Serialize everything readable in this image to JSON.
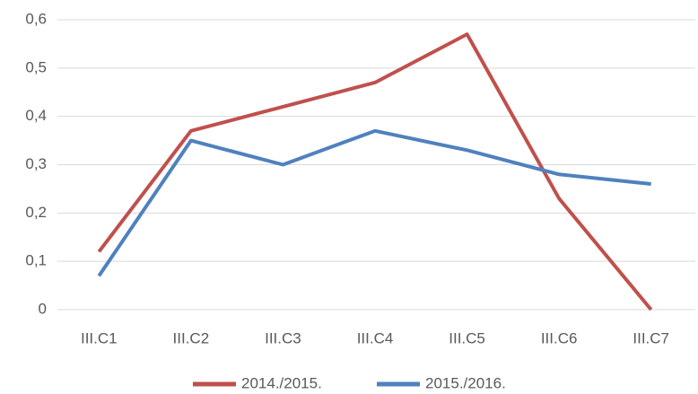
{
  "chart_data": {
    "type": "line",
    "categories": [
      "III.C1",
      "III.C2",
      "III.C3",
      "III.C4",
      "III.C5",
      "III.C6",
      "III.C7"
    ],
    "series": [
      {
        "name": "2014./2015.",
        "color": "#c0504d",
        "values": [
          0.12,
          0.37,
          0.42,
          0.47,
          0.57,
          0.23,
          0
        ]
      },
      {
        "name": "2015./2016.",
        "color": "#4f81bd",
        "values": [
          0.07,
          0.35,
          0.3,
          0.37,
          0.33,
          0.28,
          0.26
        ]
      }
    ],
    "ylim": [
      0,
      0.6
    ],
    "yticks": [
      0,
      {
        "value": 0.1,
        "label": "0,1"
      },
      {
        "value": 0.2,
        "label": "0,2"
      },
      {
        "value": 0.3,
        "label": "0,3"
      },
      {
        "value": 0.4,
        "label": "0,4"
      },
      {
        "value": 0.5,
        "label": "0,5"
      },
      {
        "value": 0.6,
        "label": "0,6"
      }
    ],
    "grid": true,
    "legend": "bottom"
  }
}
